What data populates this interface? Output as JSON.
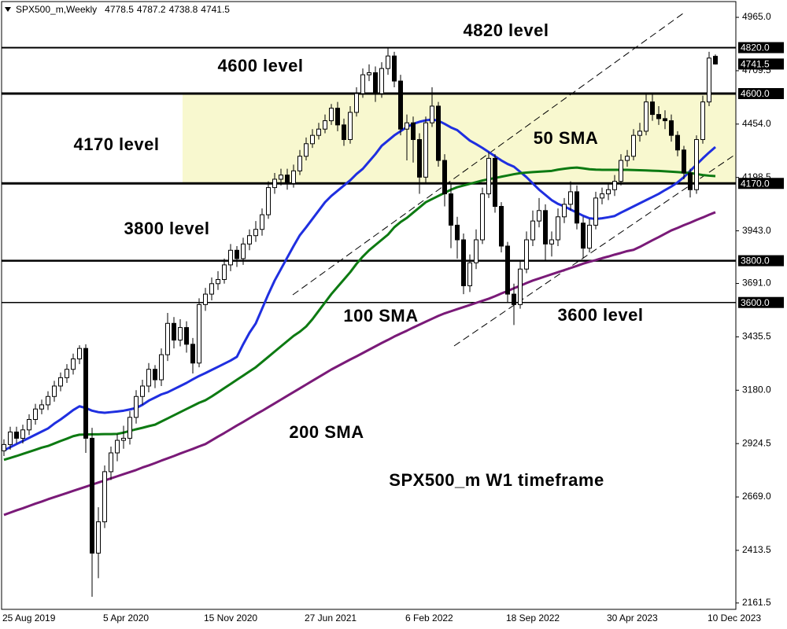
{
  "chart_data": {
    "type": "candlestick",
    "title": "SPX500_m,Weekly",
    "categories": [
      "25 Aug 2019",
      null,
      null,
      null,
      null,
      null,
      null,
      null,
      null,
      null,
      null,
      null,
      null,
      null,
      null,
      null,
      "5 Apr 2020",
      null,
      null,
      null,
      null,
      null,
      null,
      null,
      null,
      null,
      null,
      null,
      null,
      null,
      null,
      null,
      "15 Nov 2020",
      null,
      null,
      null,
      null,
      null,
      null,
      null,
      null,
      null,
      null,
      null,
      null,
      null,
      null,
      null,
      "27 Jun 2021",
      null,
      null,
      null,
      null,
      null,
      null,
      null,
      null,
      null,
      null,
      null,
      null,
      null,
      null,
      null,
      "6 Feb 2022",
      null,
      null,
      null,
      null,
      null,
      null,
      null,
      null,
      null,
      null,
      null,
      null,
      null,
      null,
      null,
      "18 Sep 2022",
      null,
      null,
      null,
      null,
      null,
      null,
      null,
      null,
      null,
      null,
      null,
      null,
      null,
      null,
      null,
      "30 Apr 2023",
      null,
      null,
      null,
      null,
      null,
      null,
      null,
      null,
      null,
      null,
      null,
      null,
      null,
      null,
      null,
      "10 Dec 2023",
      null
    ],
    "candles": {
      "open": [
        2890,
        2920,
        2980,
        2950,
        2990,
        3040,
        3090,
        3110,
        3150,
        3200,
        3240,
        3280,
        3330,
        3380,
        2950,
        2400,
        2550,
        2790,
        2880,
        2940,
        2950,
        3050,
        3150,
        3200,
        3280,
        3230,
        3350,
        3500,
        3420,
        3480,
        3400,
        3310,
        3590,
        3640,
        3690,
        3710,
        3780,
        3850,
        3810,
        3880,
        3920,
        3950,
        4020,
        4150,
        4190,
        4210,
        4170,
        4230,
        4300,
        4360,
        4400,
        4430,
        4470,
        4530,
        4450,
        4380,
        4510,
        4600,
        4690,
        4700,
        4600,
        4720,
        4780,
        4660,
        4430,
        4460,
        4380,
        4200,
        4460,
        4540,
        4280,
        4120,
        3970,
        3900,
        3680,
        3790,
        3900,
        4120,
        4290,
        4060,
        3870,
        3640,
        3590,
        3760,
        3900,
        3990,
        4040,
        3880,
        3900,
        4010,
        4070,
        4130,
        3980,
        3860,
        3970,
        4100,
        4120,
        4140,
        4180,
        4280,
        4300,
        4400,
        4420,
        4560,
        4500,
        4480,
        4470,
        4400,
        4330,
        4220,
        4140,
        4380,
        4560,
        4778.5
      ],
      "high": [
        2945,
        3005,
        3005,
        3015,
        3065,
        3115,
        3135,
        3175,
        3225,
        3265,
        3305,
        3355,
        3395,
        3400,
        3000,
        2620,
        2820,
        2910,
        2970,
        3010,
        3080,
        3180,
        3230,
        3310,
        3300,
        3380,
        3550,
        3530,
        3520,
        3510,
        3430,
        3620,
        3670,
        3720,
        3750,
        3810,
        3880,
        3870,
        3910,
        3950,
        3990,
        4050,
        4180,
        4220,
        4240,
        4240,
        4260,
        4330,
        4390,
        4430,
        4460,
        4500,
        4550,
        4560,
        4480,
        4540,
        4630,
        4720,
        4740,
        4730,
        4750,
        4818,
        4800,
        4690,
        4500,
        4490,
        4410,
        4490,
        4630,
        4560,
        4310,
        4170,
        4010,
        3930,
        3830,
        3950,
        4150,
        4320,
        4310,
        4080,
        3890,
        3690,
        3800,
        3940,
        4040,
        4100,
        4070,
        3940,
        4050,
        4100,
        4180,
        4160,
        4010,
        4000,
        4130,
        4150,
        4170,
        4210,
        4310,
        4330,
        4430,
        4460,
        4600,
        4605,
        4540,
        4520,
        4500,
        4420,
        4350,
        4240,
        4400,
        4590,
        4800,
        4787.2
      ],
      "low": [
        2865,
        2895,
        2925,
        2925,
        2965,
        3015,
        3065,
        3085,
        3125,
        3175,
        3215,
        3255,
        3305,
        2880,
        2191,
        2280,
        2520,
        2750,
        2840,
        2900,
        2920,
        3020,
        3110,
        3170,
        3190,
        3200,
        3320,
        3380,
        3390,
        3360,
        3260,
        3290,
        3560,
        3610,
        3660,
        3690,
        3750,
        3770,
        3780,
        3850,
        3890,
        3920,
        4000,
        4120,
        4160,
        4140,
        4150,
        4210,
        4280,
        4340,
        4380,
        4410,
        4450,
        4420,
        4350,
        4360,
        4490,
        4580,
        4660,
        4560,
        4580,
        4690,
        4630,
        4400,
        4280,
        4270,
        4120,
        4170,
        4440,
        4250,
        4060,
        3860,
        3810,
        3640,
        3650,
        3760,
        3880,
        4100,
        4030,
        3840,
        3600,
        3492,
        3570,
        3740,
        3870,
        3960,
        3800,
        3820,
        3870,
        3980,
        4040,
        3950,
        3810,
        3840,
        3950,
        4070,
        4090,
        4110,
        4160,
        4250,
        4280,
        4370,
        4400,
        4470,
        4450,
        4430,
        4370,
        4300,
        4190,
        4103,
        4120,
        4360,
        4540,
        4738.8
      ],
      "close": [
        2920,
        2980,
        2950,
        2990,
        3040,
        3090,
        3110,
        3150,
        3200,
        3240,
        3280,
        3330,
        3380,
        2950,
        2400,
        2550,
        2790,
        2880,
        2940,
        2950,
        3050,
        3150,
        3200,
        3280,
        3230,
        3350,
        3500,
        3420,
        3480,
        3400,
        3310,
        3590,
        3640,
        3690,
        3710,
        3780,
        3850,
        3810,
        3880,
        3920,
        3950,
        4020,
        4150,
        4190,
        4210,
        4170,
        4230,
        4300,
        4360,
        4400,
        4430,
        4470,
        4530,
        4450,
        4380,
        4510,
        4600,
        4690,
        4700,
        4600,
        4720,
        4780,
        4660,
        4430,
        4460,
        4380,
        4200,
        4460,
        4540,
        4280,
        4120,
        3970,
        3900,
        3680,
        3790,
        3900,
        4120,
        4290,
        4060,
        3870,
        3640,
        3590,
        3760,
        3900,
        3990,
        4040,
        3880,
        3900,
        4010,
        4070,
        4130,
        3980,
        3860,
        3970,
        4100,
        4120,
        4140,
        4180,
        4280,
        4300,
        4400,
        4420,
        4560,
        4500,
        4480,
        4470,
        4400,
        4330,
        4220,
        4140,
        4380,
        4560,
        4770,
        4741.5
      ]
    },
    "series": [
      {
        "name": "50 SMA",
        "color": "#1f2fe0",
        "values": [
          2892,
          2907,
          2922,
          2937,
          2952,
          2967,
          2982,
          2997,
          3020,
          3040,
          3062,
          3085,
          3103,
          3095,
          3082,
          3075,
          3072,
          3075,
          3078,
          3082,
          3088,
          3095,
          3110,
          3130,
          3145,
          3160,
          3170,
          3185,
          3200,
          3215,
          3232,
          3248,
          3262,
          3277,
          3292,
          3307,
          3322,
          3340,
          3400,
          3455,
          3500,
          3570,
          3640,
          3705,
          3760,
          3815,
          3870,
          3922,
          3960,
          4000,
          4040,
          4080,
          4110,
          4135,
          4160,
          4185,
          4215,
          4240,
          4275,
          4310,
          4350,
          4375,
          4400,
          4420,
          4440,
          4455,
          4465,
          4472,
          4476,
          4470,
          4455,
          4438,
          4425,
          4400,
          4375,
          4358,
          4340,
          4320,
          4300,
          4280,
          4263,
          4250,
          4225,
          4200,
          4170,
          4140,
          4115,
          4090,
          4072,
          4060,
          4045,
          4030,
          4015,
          4003,
          4000,
          4003,
          4008,
          4014,
          4030,
          4045,
          4060,
          4075,
          4090,
          4105,
          4120,
          4138,
          4155,
          4175,
          4200,
          4230,
          4260,
          4290,
          4318,
          4344
        ]
      },
      {
        "name": "100 SMA",
        "color": "#0d7a12",
        "values": [
          2847,
          2856,
          2865,
          2875,
          2885,
          2895,
          2905,
          2913,
          2925,
          2937,
          2948,
          2960,
          2967,
          2968,
          2969,
          2969,
          2970,
          2970,
          2971,
          2977,
          2985,
          2993,
          3000,
          3008,
          3015,
          3030,
          3045,
          3060,
          3075,
          3090,
          3105,
          3120,
          3132,
          3150,
          3170,
          3190,
          3210,
          3230,
          3250,
          3270,
          3290,
          3315,
          3340,
          3365,
          3390,
          3415,
          3440,
          3460,
          3485,
          3520,
          3560,
          3600,
          3640,
          3675,
          3710,
          3745,
          3785,
          3820,
          3850,
          3875,
          3900,
          3925,
          3960,
          3985,
          4005,
          4030,
          4055,
          4080,
          4095,
          4110,
          4125,
          4140,
          4152,
          4160,
          4168,
          4176,
          4184,
          4190,
          4196,
          4202,
          4208,
          4214,
          4219,
          4222,
          4224,
          4226,
          4228,
          4230,
          4236,
          4240,
          4244,
          4246,
          4242,
          4238,
          4236,
          4235,
          4235,
          4235,
          4235,
          4235,
          4234,
          4233,
          4232,
          4231,
          4230,
          4228,
          4226,
          4224,
          4222,
          4220,
          4215,
          4210,
          4207,
          4205
        ]
      },
      {
        "name": "200 SMA",
        "color": "#7a1a78",
        "values": [
          2583,
          2594,
          2605,
          2615,
          2626,
          2637,
          2647,
          2658,
          2668,
          2678,
          2688,
          2698,
          2708,
          2718,
          2728,
          2738,
          2748,
          2758,
          2768,
          2778,
          2788,
          2798,
          2810,
          2820,
          2831,
          2843,
          2854,
          2865,
          2877,
          2888,
          2899,
          2911,
          2922,
          2940,
          2958,
          2975,
          2993,
          3011,
          3028,
          3046,
          3064,
          3081,
          3099,
          3117,
          3135,
          3153,
          3171,
          3189,
          3207,
          3225,
          3243,
          3261,
          3279,
          3295,
          3311,
          3327,
          3342,
          3358,
          3374,
          3390,
          3406,
          3421,
          3437,
          3451,
          3465,
          3480,
          3494,
          3508,
          3522,
          3536,
          3548,
          3558,
          3568,
          3578,
          3588,
          3598,
          3608,
          3618,
          3630,
          3643,
          3655,
          3668,
          3680,
          3693,
          3705,
          3715,
          3725,
          3735,
          3745,
          3755,
          3765,
          3775,
          3786,
          3795,
          3803,
          3812,
          3820,
          3829,
          3837,
          3846,
          3852,
          3866,
          3882,
          3898,
          3913,
          3929,
          3945,
          3957,
          3970,
          3982,
          3995,
          4007,
          4020,
          4032
        ]
      }
    ],
    "levels": [
      {
        "value": 4820,
        "label": "4820.0",
        "text": "4820 level",
        "width": 2
      },
      {
        "value": 4600,
        "label": "4600.0",
        "text": "4600 level",
        "width": 3
      },
      {
        "value": 4170,
        "label": "4170.0",
        "text": "4170 level",
        "width": 3
      },
      {
        "value": 3800,
        "label": "3800.0",
        "text": "3800 level",
        "width": 2.5
      },
      {
        "value": 3600,
        "label": "3600.0",
        "text": "3600 level",
        "width": 1.5
      }
    ],
    "zone_color": "#f8f8cf",
    "note": "SPX500_m W1 timeframe",
    "ylim": [
      2131,
      5048
    ],
    "yticks": [
      {
        "value": 4965,
        "label": "4965.0"
      },
      {
        "value": 4709.5,
        "label": "4709.5"
      },
      {
        "value": 4454,
        "label": "4454.0"
      },
      {
        "value": 4198.5,
        "label": "4198.5"
      },
      {
        "value": 3943,
        "label": "3943.0"
      },
      {
        "value": 3691,
        "label": "3691.0"
      },
      {
        "value": 3435.5,
        "label": "3435.5"
      },
      {
        "value": 3180,
        "label": "3180.0"
      },
      {
        "value": 2924.5,
        "label": "2924.5"
      },
      {
        "value": 2669,
        "label": "2669.0"
      },
      {
        "value": 2413.5,
        "label": "2413.5"
      },
      {
        "value": 2161.5,
        "label": "2161.5"
      }
    ]
  }
}
